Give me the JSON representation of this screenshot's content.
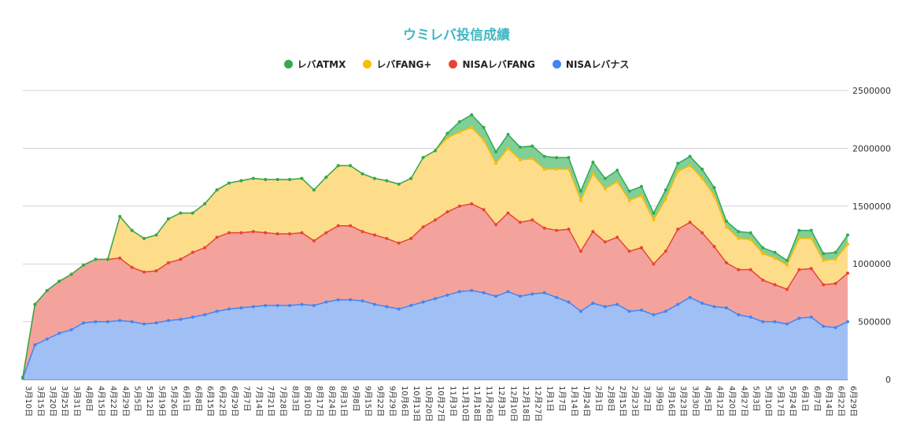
{
  "chart_data": {
    "type": "area",
    "title": "ウミレバ投信成績",
    "xlabel": "",
    "ylabel": "",
    "ylim": [
      0,
      2500000
    ],
    "yticks": [
      0,
      500000,
      1000000,
      1500000,
      2000000,
      2500000
    ],
    "grid": true,
    "legend_position": "top",
    "stacked": true,
    "x_tick_labels": [
      "3月10日",
      "3月15日",
      "3月20日",
      "3月25日",
      "3月31日",
      "4月8日",
      "4月15日",
      "4月22日",
      "4月29日",
      "5月5日",
      "5月12日",
      "5月19日",
      "5月26日",
      "6月1日",
      "6月8日",
      "6月15日",
      "6月22日",
      "6月29日",
      "7月7日",
      "7月14日",
      "7月21日",
      "7月28日",
      "8月3日",
      "8月10日",
      "8月17日",
      "8月24日",
      "8月31日",
      "9月8日",
      "9月15日",
      "9月22日",
      "9月29日",
      "10月6日",
      "10月13日",
      "10月20日",
      "10月27日",
      "11月3日",
      "11月10日",
      "11月18日",
      "11月26日",
      "12月3日",
      "12月10日",
      "12月18日",
      "12月27日",
      "1月1日",
      "1月7日",
      "1月14日",
      "1月24日",
      "2月1日",
      "2月8日",
      "2月15日",
      "2月23日",
      "3月2日",
      "3月9日",
      "3月16日",
      "3月23日",
      "3月30日",
      "4月5日",
      "4月12日",
      "4月20日",
      "4月27日",
      "5月3日",
      "5月10日",
      "5月17日",
      "5月24日",
      "6月1日",
      "6月7日",
      "6月14日",
      "6月22日",
      "6月29日"
    ],
    "series": [
      {
        "name": "NISAレバナス",
        "color": "#4285f4",
        "fill": "#a0c0f5",
        "values": [
          10000,
          300000,
          350000,
          400000,
          430000,
          490000,
          500000,
          500000,
          510000,
          500000,
          480000,
          490000,
          510000,
          520000,
          540000,
          560000,
          590000,
          610000,
          620000,
          630000,
          640000,
          640000,
          640000,
          650000,
          640000,
          670000,
          690000,
          690000,
          680000,
          650000,
          630000,
          610000,
          640000,
          670000,
          700000,
          730000,
          760000,
          770000,
          750000,
          720000,
          760000,
          720000,
          740000,
          750000,
          710000,
          670000,
          590000,
          660000,
          630000,
          650000,
          590000,
          600000,
          560000,
          590000,
          650000,
          710000,
          660000,
          630000,
          620000,
          560000,
          540000,
          500000,
          500000,
          480000,
          530000,
          540000,
          460000,
          450000,
          500000
        ]
      },
      {
        "name": "NISAレバFANG",
        "color": "#ea4335",
        "fill": "#f3a39c",
        "values": [
          10000,
          350000,
          420000,
          450000,
          480000,
          500000,
          540000,
          540000,
          540000,
          470000,
          450000,
          450000,
          500000,
          520000,
          560000,
          580000,
          640000,
          660000,
          650000,
          650000,
          630000,
          620000,
          620000,
          620000,
          560000,
          600000,
          640000,
          640000,
          600000,
          600000,
          590000,
          570000,
          580000,
          650000,
          680000,
          720000,
          740000,
          750000,
          720000,
          620000,
          680000,
          640000,
          640000,
          560000,
          580000,
          630000,
          520000,
          620000,
          560000,
          580000,
          520000,
          540000,
          440000,
          520000,
          650000,
          650000,
          610000,
          520000,
          390000,
          390000,
          410000,
          360000,
          320000,
          300000,
          420000,
          420000,
          360000,
          380000,
          420000
        ]
      },
      {
        "name": "レバFANG+",
        "color": "#fbbc04",
        "fill": "#fddd8a",
        "values": [
          0,
          0,
          0,
          0,
          0,
          0,
          0,
          0,
          360000,
          320000,
          290000,
          310000,
          380000,
          400000,
          340000,
          380000,
          410000,
          430000,
          450000,
          460000,
          460000,
          470000,
          470000,
          470000,
          440000,
          480000,
          520000,
          520000,
          500000,
          490000,
          500000,
          510000,
          520000,
          600000,
          600000,
          640000,
          640000,
          660000,
          600000,
          530000,
          560000,
          540000,
          530000,
          510000,
          530000,
          520000,
          440000,
          500000,
          460000,
          480000,
          440000,
          450000,
          380000,
          450000,
          500000,
          490000,
          470000,
          440000,
          310000,
          270000,
          260000,
          230000,
          230000,
          210000,
          270000,
          260000,
          210000,
          210000,
          250000
        ]
      },
      {
        "name": "レバATMX",
        "color": "#34a853",
        "fill": "#7fcf96",
        "values": [
          0,
          0,
          0,
          0,
          0,
          0,
          0,
          0,
          0,
          0,
          0,
          0,
          0,
          0,
          0,
          0,
          0,
          0,
          0,
          0,
          0,
          0,
          0,
          0,
          0,
          0,
          0,
          0,
          0,
          0,
          0,
          0,
          0,
          0,
          0,
          40000,
          90000,
          110000,
          110000,
          100000,
          120000,
          110000,
          110000,
          110000,
          100000,
          100000,
          80000,
          100000,
          90000,
          100000,
          80000,
          80000,
          60000,
          80000,
          70000,
          80000,
          80000,
          70000,
          50000,
          60000,
          60000,
          50000,
          50000,
          40000,
          70000,
          70000,
          60000,
          60000,
          80000
        ]
      }
    ]
  }
}
